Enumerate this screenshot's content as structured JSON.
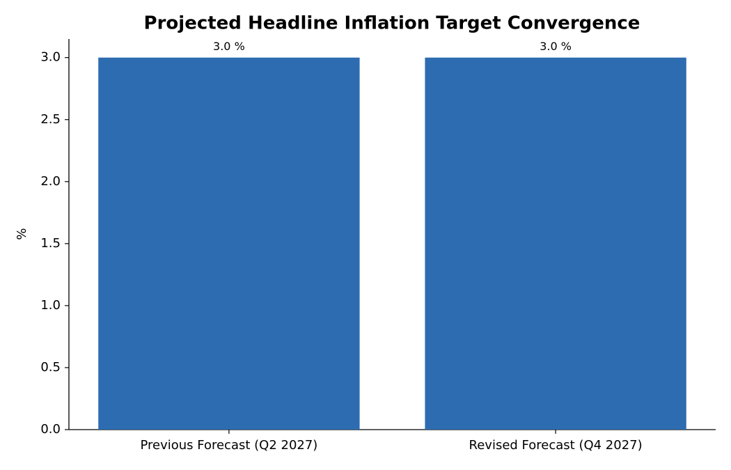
{
  "chart_data": {
    "type": "bar",
    "title": "Projected Headline Inflation Target Convergence",
    "y_label": "%",
    "categories": [
      "Previous Forecast (Q2 2027)",
      "Revised Forecast (Q4 2027)"
    ],
    "values": [
      3.0,
      3.0
    ],
    "value_labels": [
      "3.0 %",
      "3.0 %"
    ],
    "color": "#2d6cb0",
    "ylim": [
      0,
      3.15
    ],
    "yticks": [
      {
        "value": 0,
        "label": "0.0"
      },
      {
        "value": 0.5,
        "label": "0.5"
      },
      {
        "value": 1,
        "label": "1.0"
      },
      {
        "value": 1.5,
        "label": "1.5"
      },
      {
        "value": 2,
        "label": "2.0"
      },
      {
        "value": 2.5,
        "label": "2.5"
      },
      {
        "value": 3,
        "label": "3.0"
      }
    ],
    "grid": false
  }
}
